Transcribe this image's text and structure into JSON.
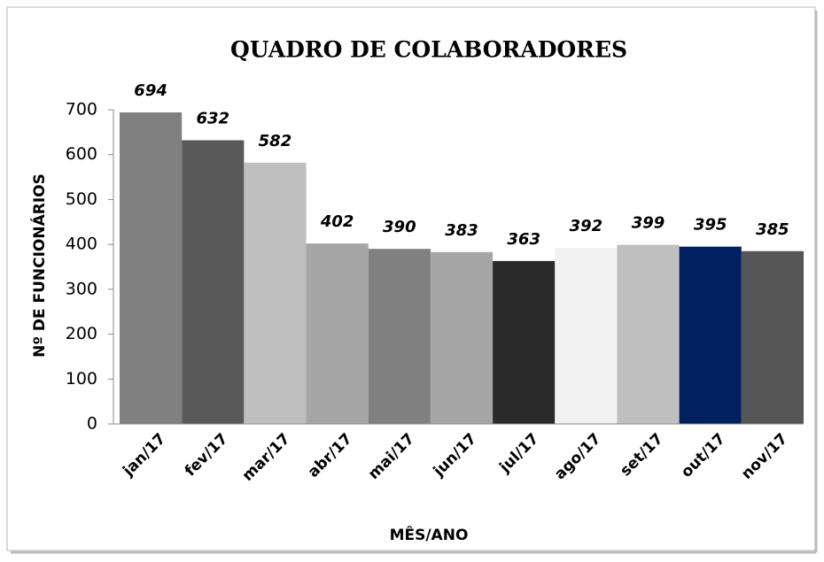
{
  "chart_data": {
    "type": "bar",
    "title": "QUADRO DE COLABORADORES",
    "x_label": "MÊS/ANO",
    "y_label": "Nº DE FUNCIONÁRIOS",
    "categories": [
      "jan/17",
      "fev/17",
      "mar/17",
      "abr/17",
      "mai/17",
      "jun/17",
      "jul/17",
      "ago/17",
      "set/17",
      "out/17",
      "nov/17"
    ],
    "values": [
      694,
      632,
      582,
      402,
      390,
      383,
      363,
      392,
      399,
      395,
      385
    ],
    "colors": [
      "#808080",
      "#595959",
      "#bfbfbf",
      "#a6a6a6",
      "#808080",
      "#a6a6a6",
      "#2a2a2a",
      "#f2f2f2",
      "#bfbfbf",
      "#002060",
      "#555555"
    ],
    "ylim": [
      0,
      700
    ],
    "yticks": [
      0,
      100,
      200,
      300,
      400,
      500,
      600,
      700
    ],
    "grid": false
  }
}
